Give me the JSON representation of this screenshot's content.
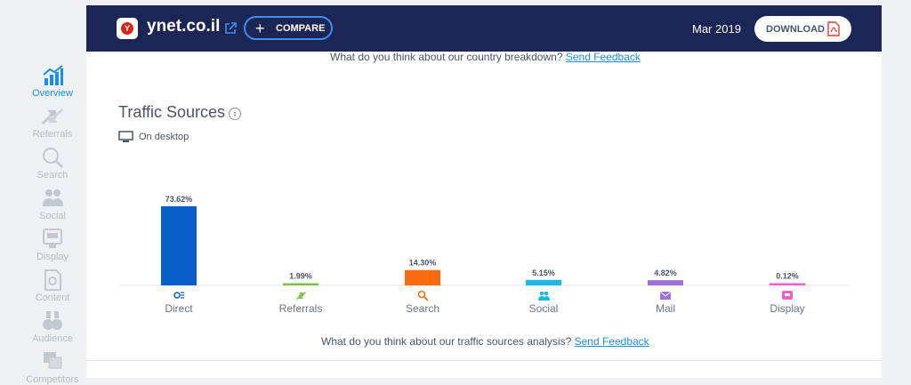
{
  "sidebar": {
    "items": [
      {
        "label": "Overview",
        "icon": "chart-bars-icon",
        "active": true
      },
      {
        "label": "Referrals",
        "icon": "referrals-arrows-icon",
        "active": false
      },
      {
        "label": "Search",
        "icon": "search-icon",
        "active": false
      },
      {
        "label": "Social",
        "icon": "social-people-icon",
        "active": false
      },
      {
        "label": "Display",
        "icon": "display-ad-icon",
        "active": false
      },
      {
        "label": "Content",
        "icon": "content-page-icon",
        "active": false
      },
      {
        "label": "Audience",
        "icon": "binoculars-icon",
        "active": false
      },
      {
        "label": "Competitors",
        "icon": "competitors-icon",
        "active": false
      }
    ]
  },
  "header": {
    "site_name": "ynet.co.il",
    "compare_label": "COMPARE",
    "date": "Mar 2019",
    "download_label": "DOWNLOAD",
    "logo_letter": "Y"
  },
  "feedback": {
    "country_text": "What do you think about our country breakdown?",
    "country_link": "Send Feedback",
    "traffic_text": "What do you think about our traffic sources analysis?",
    "traffic_link": "Send Feedback"
  },
  "traffic": {
    "title": "Traffic Sources",
    "device": "On desktop"
  },
  "colors": {
    "header_bg": "#1b2556",
    "accent": "#1b8fe0",
    "direct": "#0a5fc9",
    "referrals": "#79c043",
    "search": "#fa6a10",
    "social": "#19b8e5",
    "mail": "#9d71d9",
    "display": "#f25eca"
  },
  "chart_data": {
    "type": "bar",
    "categories": [
      "Direct",
      "Referrals",
      "Search",
      "Social",
      "Mail",
      "Display"
    ],
    "values": [
      73.62,
      1.99,
      14.3,
      5.15,
      4.82,
      0.12
    ],
    "value_labels": [
      "73.62%",
      "1.99%",
      "14.30%",
      "5.15%",
      "4.82%",
      "0.12%"
    ],
    "colors": [
      "#0a5fc9",
      "#79c043",
      "#fa6a10",
      "#19b8e5",
      "#9d71d9",
      "#f25eca"
    ],
    "icons": [
      "direct-icon",
      "referrals-icon",
      "search-icon",
      "social-icon",
      "mail-icon",
      "display-icon"
    ],
    "title": "",
    "xlabel": "",
    "ylabel": "",
    "ylim": [
      0,
      100
    ]
  }
}
